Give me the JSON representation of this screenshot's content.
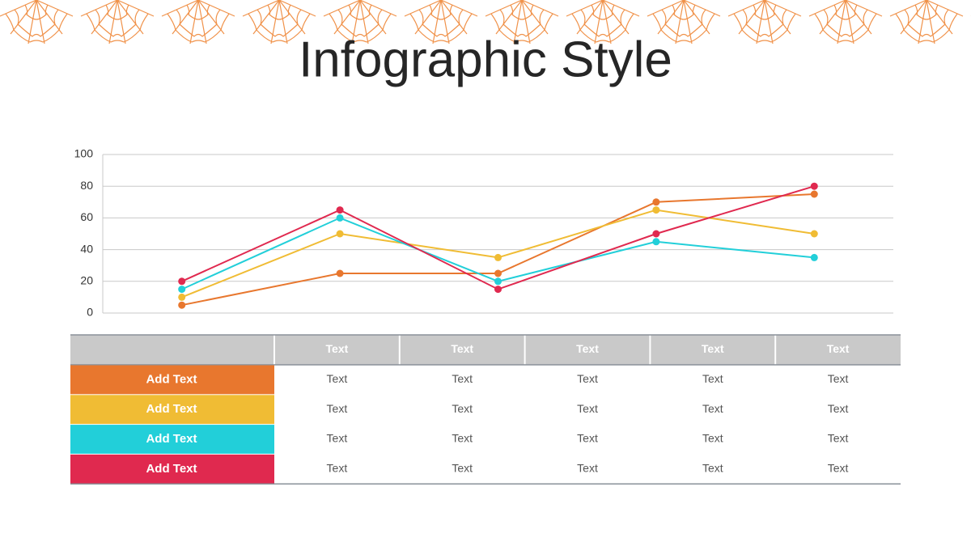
{
  "chart_data": {
    "type": "line",
    "title": "Infographic Style",
    "categories": [
      null,
      null,
      null,
      null,
      null
    ],
    "series": [
      {
        "name": "Add Text",
        "color": "#e8772e",
        "values": [
          5,
          25,
          25,
          70,
          75
        ]
      },
      {
        "name": "Add Text",
        "color": "#f0bc34",
        "values": [
          10,
          50,
          35,
          65,
          50
        ]
      },
      {
        "name": "Add Text",
        "color": "#22cfd9",
        "values": [
          15,
          60,
          20,
          45,
          35
        ]
      },
      {
        "name": "Add Text",
        "color": "#e0294f",
        "values": [
          20,
          65,
          15,
          50,
          80
        ]
      }
    ],
    "ylim": [
      0,
      100
    ],
    "yticks": [
      0,
      20,
      40,
      60,
      80,
      100
    ],
    "grid": true
  },
  "table": {
    "header": [
      "Text",
      "Text",
      "Text",
      "Text",
      "Text"
    ],
    "rows": [
      [
        "Text",
        "Text",
        "Text",
        "Text",
        "Text"
      ],
      [
        "Text",
        "Text",
        "Text",
        "Text",
        "Text"
      ],
      [
        "Text",
        "Text",
        "Text",
        "Text",
        "Text"
      ],
      [
        "Text",
        "Text",
        "Text",
        "Text",
        "Text"
      ]
    ]
  }
}
